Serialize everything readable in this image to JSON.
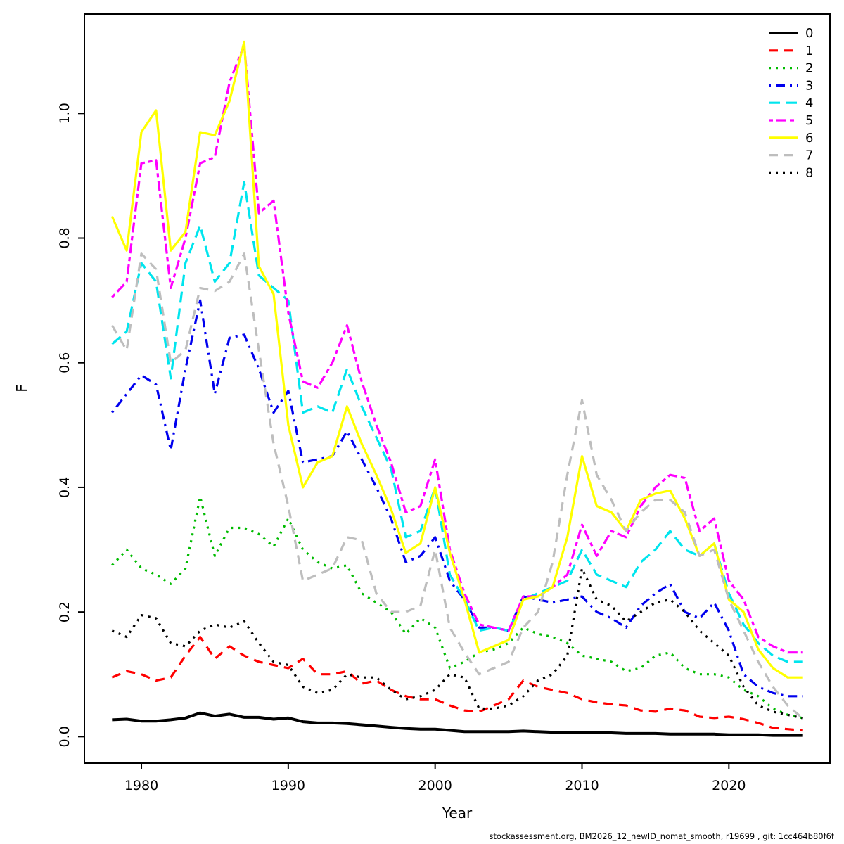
{
  "footer": {
    "text": "stockassessment.org, BM2026_12_newID_nomat_smooth, r19699 , git: 1cc464b80f6f"
  },
  "chart_data": {
    "type": "line",
    "title": "",
    "xlabel": "Year",
    "ylabel": "F",
    "xlim": [
      1976.12,
      2026.88
    ],
    "ylim": [
      -0.0425,
      1.1595
    ],
    "x_ticks": [
      1980,
      1990,
      2000,
      2010,
      2020
    ],
    "y_ticks": [
      0.0,
      0.2,
      0.4,
      0.6,
      0.8,
      1.0
    ],
    "grid": false,
    "legend_position": "top-right",
    "x": [
      1978,
      1979,
      1980,
      1981,
      1982,
      1983,
      1984,
      1985,
      1986,
      1987,
      1988,
      1989,
      1990,
      1991,
      1992,
      1993,
      1994,
      1995,
      1996,
      1997,
      1998,
      1999,
      2000,
      2001,
      2002,
      2003,
      2004,
      2005,
      2006,
      2007,
      2008,
      2009,
      2010,
      2011,
      2012,
      2013,
      2014,
      2015,
      2016,
      2017,
      2018,
      2019,
      2020,
      2021,
      2022,
      2023,
      2024,
      2025
    ],
    "series": [
      {
        "name": "0",
        "color": "#000000",
        "linetype": "solid",
        "lwd": 4,
        "values": [
          0.027,
          0.028,
          0.025,
          0.025,
          0.027,
          0.03,
          0.038,
          0.033,
          0.036,
          0.031,
          0.031,
          0.028,
          0.03,
          0.024,
          0.022,
          0.022,
          0.021,
          0.019,
          0.017,
          0.015,
          0.013,
          0.012,
          0.012,
          0.01,
          0.008,
          0.008,
          0.008,
          0.008,
          0.009,
          0.008,
          0.007,
          0.007,
          0.006,
          0.006,
          0.006,
          0.005,
          0.005,
          0.005,
          0.004,
          0.004,
          0.004,
          0.004,
          0.003,
          0.003,
          0.003,
          0.002,
          0.002,
          0.002
        ]
      },
      {
        "name": "1",
        "color": "#FF0000",
        "linetype": "dashed",
        "lwd": 3.2,
        "values": [
          0.095,
          0.105,
          0.1,
          0.09,
          0.095,
          0.13,
          0.16,
          0.125,
          0.145,
          0.13,
          0.12,
          0.115,
          0.11,
          0.125,
          0.1,
          0.1,
          0.105,
          0.085,
          0.09,
          0.075,
          0.065,
          0.06,
          0.06,
          0.05,
          0.042,
          0.04,
          0.05,
          0.06,
          0.09,
          0.08,
          0.075,
          0.07,
          0.06,
          0.055,
          0.052,
          0.05,
          0.042,
          0.04,
          0.045,
          0.042,
          0.032,
          0.03,
          0.032,
          0.028,
          0.022,
          0.014,
          0.012,
          0.01
        ]
      },
      {
        "name": "2",
        "color": "#00BB00",
        "linetype": "dotted",
        "lwd": 3.2,
        "values": [
          0.275,
          0.3,
          0.27,
          0.26,
          0.245,
          0.27,
          0.385,
          0.29,
          0.335,
          0.335,
          0.325,
          0.305,
          0.35,
          0.3,
          0.28,
          0.27,
          0.275,
          0.23,
          0.215,
          0.2,
          0.165,
          0.19,
          0.175,
          0.11,
          0.12,
          0.135,
          0.14,
          0.15,
          0.175,
          0.165,
          0.16,
          0.15,
          0.13,
          0.125,
          0.12,
          0.105,
          0.11,
          0.13,
          0.135,
          0.11,
          0.1,
          0.1,
          0.095,
          0.075,
          0.065,
          0.045,
          0.035,
          0.03
        ]
      },
      {
        "name": "3",
        "color": "#0000EE",
        "linetype": "dotdash",
        "lwd": 3.2,
        "values": [
          0.52,
          0.55,
          0.58,
          0.565,
          0.46,
          0.59,
          0.7,
          0.55,
          0.64,
          0.645,
          0.59,
          0.52,
          0.555,
          0.44,
          0.445,
          0.45,
          0.49,
          0.445,
          0.4,
          0.35,
          0.28,
          0.29,
          0.32,
          0.25,
          0.22,
          0.175,
          0.175,
          0.17,
          0.225,
          0.22,
          0.215,
          0.22,
          0.225,
          0.2,
          0.19,
          0.175,
          0.21,
          0.23,
          0.245,
          0.2,
          0.19,
          0.215,
          0.17,
          0.1,
          0.08,
          0.07,
          0.065,
          0.065
        ]
      },
      {
        "name": "4",
        "color": "#00E5EE",
        "linetype": "longdash",
        "lwd": 3.2,
        "values": [
          0.63,
          0.65,
          0.76,
          0.73,
          0.575,
          0.76,
          0.82,
          0.73,
          0.76,
          0.89,
          0.74,
          0.72,
          0.7,
          0.52,
          0.53,
          0.52,
          0.59,
          0.53,
          0.48,
          0.43,
          0.32,
          0.33,
          0.4,
          0.26,
          0.22,
          0.17,
          0.175,
          0.17,
          0.22,
          0.23,
          0.24,
          0.25,
          0.3,
          0.26,
          0.25,
          0.24,
          0.28,
          0.3,
          0.33,
          0.3,
          0.29,
          0.31,
          0.23,
          0.18,
          0.15,
          0.13,
          0.12,
          0.12
        ]
      },
      {
        "name": "5",
        "color": "#FF00FF",
        "linetype": "twodash",
        "lwd": 3.2,
        "values": [
          0.705,
          0.73,
          0.92,
          0.925,
          0.72,
          0.8,
          0.92,
          0.93,
          1.05,
          1.11,
          0.84,
          0.86,
          0.68,
          0.57,
          0.56,
          0.6,
          0.66,
          0.57,
          0.5,
          0.44,
          0.36,
          0.37,
          0.445,
          0.3,
          0.23,
          0.18,
          0.175,
          0.17,
          0.225,
          0.225,
          0.24,
          0.26,
          0.34,
          0.29,
          0.33,
          0.32,
          0.37,
          0.4,
          0.42,
          0.415,
          0.33,
          0.35,
          0.25,
          0.22,
          0.16,
          0.145,
          0.135,
          0.135
        ]
      },
      {
        "name": "6",
        "color": "#FFFF00",
        "linetype": "solid",
        "lwd": 3.2,
        "values": [
          0.835,
          0.78,
          0.97,
          1.005,
          0.78,
          0.81,
          0.97,
          0.965,
          1.02,
          1.115,
          0.755,
          0.71,
          0.5,
          0.4,
          0.44,
          0.45,
          0.53,
          0.47,
          0.42,
          0.365,
          0.295,
          0.31,
          0.4,
          0.295,
          0.22,
          0.135,
          0.145,
          0.155,
          0.22,
          0.225,
          0.24,
          0.32,
          0.45,
          0.37,
          0.36,
          0.33,
          0.38,
          0.39,
          0.395,
          0.35,
          0.29,
          0.31,
          0.22,
          0.2,
          0.14,
          0.11,
          0.095,
          0.095
        ]
      },
      {
        "name": "7",
        "color": "#BEBEBE",
        "linetype": "dashed",
        "lwd": 3.2,
        "values": [
          0.66,
          0.62,
          0.775,
          0.75,
          0.6,
          0.62,
          0.72,
          0.715,
          0.73,
          0.775,
          0.62,
          0.47,
          0.37,
          0.25,
          0.26,
          0.27,
          0.32,
          0.315,
          0.23,
          0.2,
          0.2,
          0.21,
          0.3,
          0.175,
          0.135,
          0.1,
          0.11,
          0.12,
          0.175,
          0.2,
          0.28,
          0.42,
          0.54,
          0.42,
          0.38,
          0.33,
          0.36,
          0.38,
          0.38,
          0.36,
          0.29,
          0.3,
          0.22,
          0.17,
          0.12,
          0.08,
          0.05,
          0.03
        ]
      },
      {
        "name": "8",
        "color": "#000000",
        "linetype": "dotted",
        "lwd": 3.2,
        "values": [
          0.17,
          0.16,
          0.195,
          0.19,
          0.15,
          0.145,
          0.17,
          0.18,
          0.175,
          0.185,
          0.15,
          0.12,
          0.115,
          0.08,
          0.07,
          0.075,
          0.1,
          0.095,
          0.095,
          0.075,
          0.06,
          0.065,
          0.075,
          0.1,
          0.095,
          0.045,
          0.045,
          0.05,
          0.065,
          0.09,
          0.1,
          0.13,
          0.27,
          0.22,
          0.21,
          0.185,
          0.2,
          0.215,
          0.22,
          0.2,
          0.17,
          0.15,
          0.13,
          0.08,
          0.05,
          0.04,
          0.035,
          0.03
        ]
      }
    ]
  }
}
